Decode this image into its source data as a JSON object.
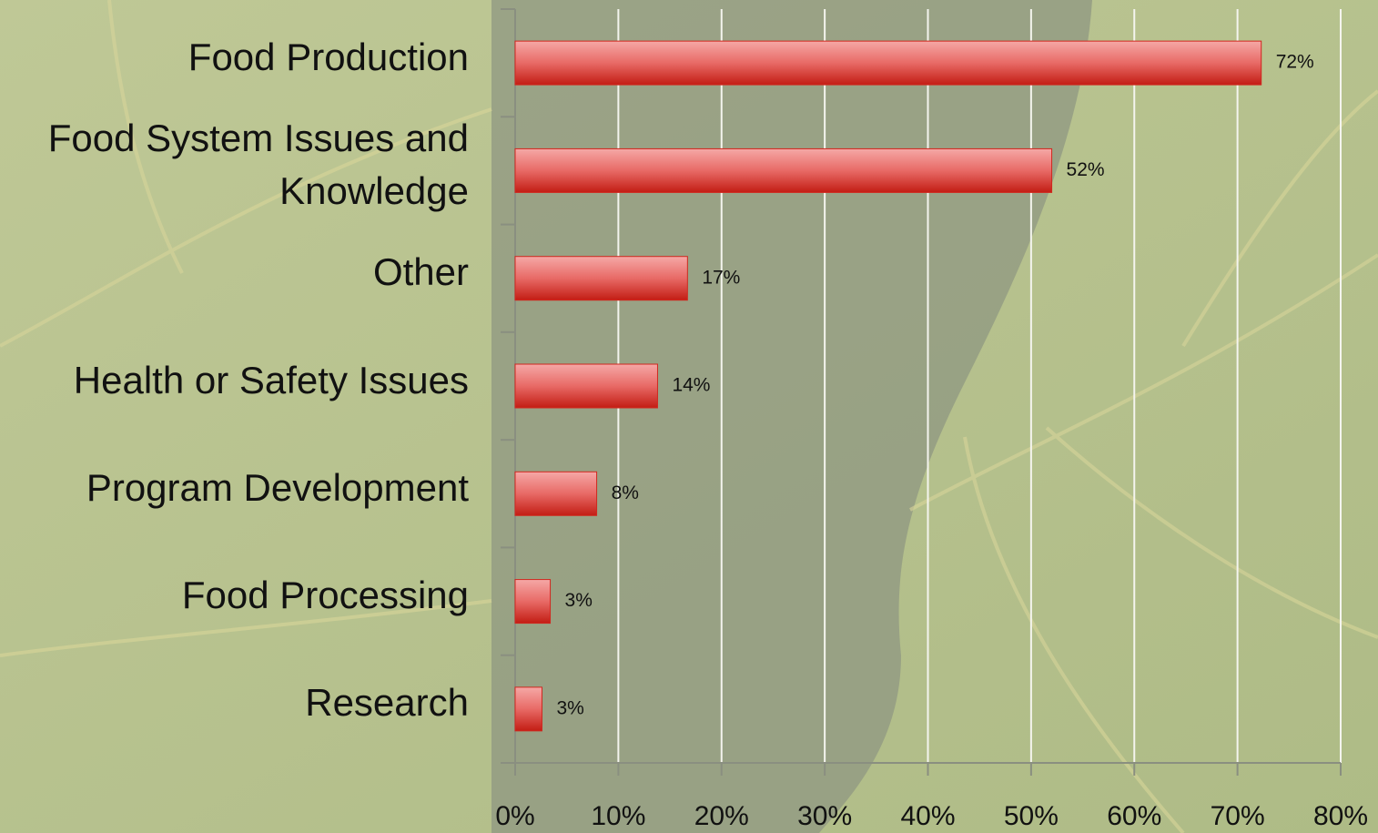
{
  "chart_data": {
    "type": "bar",
    "orientation": "horizontal",
    "categories": [
      "Food Production",
      "Food System Issues and Knowledge",
      "Other",
      "Health or Safety Issues",
      "Program Development",
      "Food Processing",
      "Research"
    ],
    "values": [
      72.3,
      52,
      16.7,
      13.8,
      7.9,
      3.4,
      2.6
    ],
    "value_labels": [
      "72%",
      "52%",
      "17%",
      "14%",
      "8%",
      "3%",
      "3%"
    ],
    "color": "#d0281f",
    "xlim": [
      0,
      80
    ],
    "xticks": [
      {
        "value": 0,
        "label": "0%"
      },
      {
        "value": 10,
        "label": "10%"
      },
      {
        "value": 20,
        "label": "20%"
      },
      {
        "value": 30,
        "label": "30%"
      },
      {
        "value": 40,
        "label": "40%"
      },
      {
        "value": 50,
        "label": "50%"
      },
      {
        "value": 60,
        "label": "60%"
      },
      {
        "value": 70,
        "label": "70%"
      },
      {
        "value": 80,
        "label": "80%"
      }
    ],
    "grid": true
  }
}
